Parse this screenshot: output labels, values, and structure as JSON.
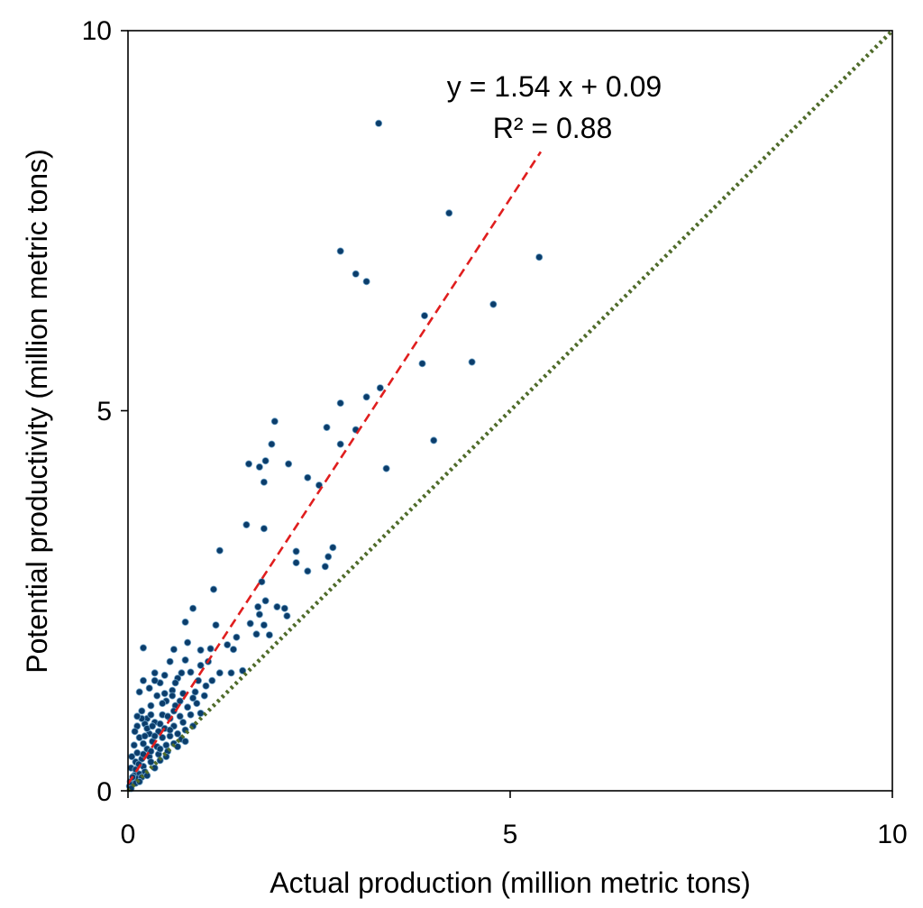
{
  "chart_data": {
    "type": "scatter",
    "title": "",
    "xlabel": "Actual production (million metric tons)",
    "ylabel": "Potential productivity (million metric tons)",
    "xlim": [
      0,
      10
    ],
    "ylim": [
      0,
      10
    ],
    "xticks": [
      "0",
      "5",
      "10"
    ],
    "yticks": [
      "0",
      "5",
      "10"
    ],
    "grid": false,
    "colors": {
      "points": "#0b3d6b",
      "fit": "#e01e1e",
      "identity": "#4f6b2a"
    },
    "fit_line": {
      "slope": 1.54,
      "intercept": 0.09,
      "x_range": [
        0,
        5.4
      ],
      "style": "dashed"
    },
    "identity_line": {
      "slope": 1,
      "intercept": 0,
      "x_range": [
        0,
        10
      ],
      "style": "dotted"
    },
    "annotations": {
      "equation": "y = 1.54 x + 0.09",
      "r_squared": "R² = 0.88"
    },
    "points": [
      [
        3.28,
        8.78
      ],
      [
        4.2,
        7.6
      ],
      [
        2.78,
        7.1
      ],
      [
        5.38,
        7.02
      ],
      [
        2.98,
        6.8
      ],
      [
        3.12,
        6.7
      ],
      [
        4.78,
        6.4
      ],
      [
        3.88,
        6.25
      ],
      [
        3.85,
        5.62
      ],
      [
        4.5,
        5.64
      ],
      [
        3.3,
        5.3
      ],
      [
        3.12,
        5.18
      ],
      [
        2.78,
        5.1
      ],
      [
        1.92,
        4.86
      ],
      [
        2.6,
        4.78
      ],
      [
        2.98,
        4.75
      ],
      [
        1.88,
        4.56
      ],
      [
        2.78,
        4.56
      ],
      [
        4.0,
        4.61
      ],
      [
        1.58,
        4.3
      ],
      [
        1.72,
        4.26
      ],
      [
        1.8,
        4.34
      ],
      [
        2.1,
        4.3
      ],
      [
        3.38,
        4.24
      ],
      [
        2.35,
        4.12
      ],
      [
        1.78,
        4.06
      ],
      [
        2.5,
        4.02
      ],
      [
        1.55,
        3.5
      ],
      [
        1.78,
        3.45
      ],
      [
        1.2,
        3.16
      ],
      [
        2.2,
        3.15
      ],
      [
        2.68,
        3.2
      ],
      [
        2.62,
        3.08
      ],
      [
        2.2,
        3.0
      ],
      [
        2.58,
        2.95
      ],
      [
        2.35,
        2.89
      ],
      [
        1.75,
        2.75
      ],
      [
        1.12,
        2.65
      ],
      [
        1.8,
        2.5
      ],
      [
        1.7,
        2.42
      ],
      [
        1.95,
        2.42
      ],
      [
        2.05,
        2.4
      ],
      [
        0.85,
        2.4
      ],
      [
        1.72,
        2.32
      ],
      [
        2.08,
        2.3
      ],
      [
        0.75,
        2.22
      ],
      [
        1.15,
        2.18
      ],
      [
        1.78,
        2.18
      ],
      [
        1.6,
        2.2
      ],
      [
        1.68,
        2.06
      ],
      [
        1.42,
        2.02
      ],
      [
        1.85,
        2.05
      ],
      [
        1.3,
        1.92
      ],
      [
        1.38,
        1.86
      ],
      [
        1.08,
        1.87
      ],
      [
        0.2,
        1.88
      ],
      [
        1.5,
        1.58
      ],
      [
        1.35,
        1.55
      ],
      [
        0.6,
        1.86
      ],
      [
        0.75,
        1.72
      ],
      [
        0.95,
        1.65
      ],
      [
        0.55,
        1.7
      ],
      [
        0.82,
        1.56
      ],
      [
        0.92,
        1.45
      ],
      [
        1.02,
        1.38
      ],
      [
        0.65,
        1.48
      ],
      [
        0.48,
        1.52
      ],
      [
        0.35,
        1.55
      ],
      [
        0.15,
        1.3
      ],
      [
        0.2,
        1.45
      ],
      [
        0.28,
        1.35
      ],
      [
        0.42,
        1.42
      ],
      [
        0.58,
        1.32
      ],
      [
        0.72,
        1.28
      ],
      [
        0.85,
        1.22
      ],
      [
        0.38,
        1.25
      ],
      [
        0.5,
        1.18
      ],
      [
        0.62,
        1.12
      ],
      [
        0.78,
        1.1
      ],
      [
        0.18,
        1.05
      ],
      [
        0.3,
        1.12
      ],
      [
        0.45,
        1.0
      ],
      [
        0.25,
        0.95
      ],
      [
        0.55,
        0.95
      ],
      [
        0.68,
        0.98
      ],
      [
        0.12,
        0.85
      ],
      [
        0.22,
        0.88
      ],
      [
        0.35,
        0.9
      ],
      [
        0.48,
        0.82
      ],
      [
        0.6,
        0.85
      ],
      [
        0.72,
        0.9
      ],
      [
        0.82,
        1.0
      ],
      [
        0.95,
        1.02
      ],
      [
        0.4,
        0.78
      ],
      [
        0.28,
        0.75
      ],
      [
        0.15,
        0.7
      ],
      [
        0.08,
        0.6
      ],
      [
        0.2,
        0.62
      ],
      [
        0.32,
        0.65
      ],
      [
        0.45,
        0.7
      ],
      [
        0.55,
        0.72
      ],
      [
        0.65,
        0.75
      ],
      [
        0.75,
        0.8
      ],
      [
        0.05,
        0.45
      ],
      [
        0.12,
        0.5
      ],
      [
        0.25,
        0.55
      ],
      [
        0.38,
        0.58
      ],
      [
        0.5,
        0.6
      ],
      [
        0.6,
        0.62
      ],
      [
        0.7,
        0.68
      ],
      [
        0.1,
        0.38
      ],
      [
        0.18,
        0.42
      ],
      [
        0.28,
        0.45
      ],
      [
        0.4,
        0.48
      ],
      [
        0.52,
        0.52
      ],
      [
        0.04,
        0.3
      ],
      [
        0.1,
        0.28
      ],
      [
        0.2,
        0.32
      ],
      [
        0.3,
        0.38
      ],
      [
        0.42,
        0.4
      ],
      [
        0.08,
        0.2
      ],
      [
        0.15,
        0.22
      ],
      [
        0.22,
        0.25
      ],
      [
        0.35,
        0.3
      ],
      [
        0.5,
        0.45
      ],
      [
        0.03,
        0.12
      ],
      [
        0.08,
        0.12
      ],
      [
        0.12,
        0.16
      ],
      [
        0.18,
        0.18
      ],
      [
        0.25,
        0.2
      ],
      [
        0.02,
        0.06
      ],
      [
        0.05,
        0.08
      ],
      [
        0.1,
        0.1
      ],
      [
        0.15,
        0.12
      ],
      [
        0.04,
        0.03
      ],
      [
        0.3,
        0.52
      ],
      [
        0.35,
        0.72
      ],
      [
        0.42,
        0.88
      ],
      [
        0.52,
        0.98
      ],
      [
        0.6,
        1.05
      ],
      [
        0.68,
        1.18
      ],
      [
        0.22,
        0.72
      ],
      [
        0.18,
        0.95
      ],
      [
        0.3,
        1.0
      ],
      [
        0.45,
        1.15
      ],
      [
        0.58,
        1.25
      ],
      [
        0.35,
        1.45
      ],
      [
        0.12,
        0.98
      ],
      [
        0.09,
        0.78
      ],
      [
        0.25,
        0.82
      ],
      [
        0.65,
        0.58
      ],
      [
        0.75,
        0.65
      ],
      [
        0.85,
        0.85
      ],
      [
        0.9,
        1.15
      ],
      [
        1.0,
        1.25
      ],
      [
        1.1,
        1.45
      ],
      [
        1.2,
        1.55
      ],
      [
        0.95,
        1.85
      ],
      [
        0.78,
        1.95
      ],
      [
        1.05,
        1.7
      ],
      [
        0.42,
        0.55
      ],
      [
        0.55,
        0.8
      ],
      [
        0.2,
        0.48
      ],
      [
        0.06,
        0.18
      ],
      [
        0.14,
        0.35
      ],
      [
        0.32,
        0.85
      ],
      [
        0.48,
        1.28
      ],
      [
        0.62,
        1.42
      ],
      [
        0.7,
        1.55
      ],
      [
        0.88,
        1.3
      ]
    ]
  }
}
